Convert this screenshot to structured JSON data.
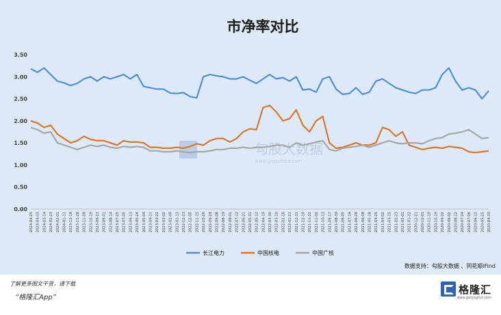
{
  "chart_data": {
    "type": "line",
    "title": "市净率对比",
    "source": "数据支持：勾股大数据 、同花顺iFind",
    "watermark": "勾股大数据",
    "watermark_url": "www.gogudata.com",
    "xlabel": "",
    "ylabel": "",
    "ylim": [
      0,
      3.5
    ],
    "yticks": [
      "0.00",
      "0.50",
      "1.00",
      "1.50",
      "2.00",
      "2.50",
      "3.00",
      "3.50"
    ],
    "grid": false,
    "legend_position": "bottom",
    "x_tick_labels": [
      "2024-04-25",
      "2024-04-03",
      "2024-03-14",
      "2024-02-23",
      "2024-02-01",
      "2024-01-11",
      "2023-12-18",
      "2023-11-28",
      "2023-11-08",
      "2023-10-19",
      "2023-09-21",
      "2023-09-01",
      "2023-08-14",
      "2023-07-25",
      "2023-07-05",
      "2023-06-13",
      "2023-05-24",
      "2023-05-04",
      "2023-04-11",
      "2023-03-22",
      "2023-03-02",
      "2023-02-09",
      "2023-01-13",
      "2022-12-23",
      "2022-12-05",
      "2022-11-15",
      "2022-10-26",
      "2022-09-29",
      "2022-09-08",
      "2022-08-19",
      "2022-08-01",
      "2022-07-12",
      "2022-06-21",
      "2022-05-31",
      "2022-05-12",
      "2022-04-19",
      "2022-03-30",
      "2022-03-10",
      "2022-02-16",
      "2022-01-21",
      "2021-12-31",
      "2021-12-10",
      "2021-11-22",
      "2021-11-02",
      "2021-10-13",
      "2021-09-17",
      "2021-08-30",
      "2021-08-05",
      "2021-07-16",
      "2021-06-28",
      "2021-06-08",
      "2021-05-18",
      "2021-04-26",
      "2021-04-02",
      "2021-03-15",
      "2021-02-23",
      "2021-02-01",
      "2021-01-12",
      "2020-12-21",
      "2020-12-01",
      "2020-11-10",
      "2020-10-19",
      "2020-09-22",
      "2020-09-02",
      "2020-08-12",
      "2020-07-24",
      "2020-07-06",
      "2020-06-12",
      "2020-05-25",
      "2020-04-30"
    ],
    "series": [
      {
        "name": "长江电力",
        "color": "#4f8ed6",
        "values": [
          3.18,
          3.1,
          3.2,
          3.05,
          2.9,
          2.86,
          2.8,
          2.85,
          2.95,
          3.0,
          2.9,
          3.0,
          2.95,
          3.0,
          3.05,
          2.95,
          3.05,
          2.78,
          2.75,
          2.72,
          2.72,
          2.63,
          2.62,
          2.64,
          2.55,
          2.52,
          3.0,
          3.05,
          3.02,
          3.0,
          2.95,
          2.95,
          3.0,
          2.92,
          2.85,
          2.95,
          3.05,
          2.95,
          2.98,
          2.9,
          3.0,
          2.7,
          2.72,
          2.65,
          2.95,
          3.0,
          2.72,
          2.6,
          2.62,
          2.75,
          2.6,
          2.65,
          2.9,
          2.95,
          2.85,
          2.75,
          2.7,
          2.65,
          2.62,
          2.7,
          2.7,
          2.75,
          3.05,
          3.2,
          2.9,
          2.7,
          2.75,
          2.7,
          2.5,
          2.68
        ]
      },
      {
        "name": "中国核电",
        "color": "#d8762d",
        "values": [
          2.0,
          1.95,
          1.85,
          1.9,
          1.7,
          1.6,
          1.5,
          1.55,
          1.65,
          1.58,
          1.55,
          1.55,
          1.5,
          1.45,
          1.55,
          1.52,
          1.52,
          1.5,
          1.4,
          1.4,
          1.38,
          1.38,
          1.4,
          1.38,
          1.42,
          1.48,
          1.45,
          1.55,
          1.6,
          1.6,
          1.52,
          1.6,
          1.75,
          1.82,
          1.8,
          2.3,
          2.35,
          2.2,
          2.0,
          2.05,
          2.25,
          1.9,
          1.75,
          2.0,
          2.1,
          1.5,
          1.38,
          1.4,
          1.45,
          1.5,
          1.45,
          1.45,
          1.5,
          1.85,
          1.8,
          1.65,
          1.75,
          1.45,
          1.4,
          1.35,
          1.38,
          1.4,
          1.38,
          1.42,
          1.4,
          1.38,
          1.3,
          1.28,
          1.3,
          1.32
        ]
      },
      {
        "name": "中国广核",
        "color": "#a6a6a6",
        "values": [
          1.85,
          1.8,
          1.72,
          1.75,
          1.5,
          1.45,
          1.4,
          1.35,
          1.4,
          1.45,
          1.42,
          1.45,
          1.4,
          1.38,
          1.42,
          1.4,
          1.42,
          1.4,
          1.32,
          1.32,
          1.3,
          1.3,
          1.32,
          1.3,
          1.28,
          1.3,
          1.3,
          1.32,
          1.35,
          1.35,
          1.38,
          1.38,
          1.4,
          1.38,
          1.4,
          1.4,
          1.42,
          1.45,
          1.45,
          1.4,
          1.5,
          1.45,
          1.48,
          1.52,
          1.55,
          1.35,
          1.32,
          1.38,
          1.4,
          1.42,
          1.45,
          1.4,
          1.45,
          1.5,
          1.55,
          1.5,
          1.48,
          1.5,
          1.5,
          1.48,
          1.55,
          1.6,
          1.62,
          1.7,
          1.72,
          1.75,
          1.8,
          1.7,
          1.6,
          1.62
        ]
      }
    ]
  },
  "footer": {
    "promo_line1": "了解更多图文干货，请下载",
    "promo_line2": "“格隆汇App”",
    "logo_text": "格隆汇",
    "logo_url": "www.gelonghui.com"
  }
}
